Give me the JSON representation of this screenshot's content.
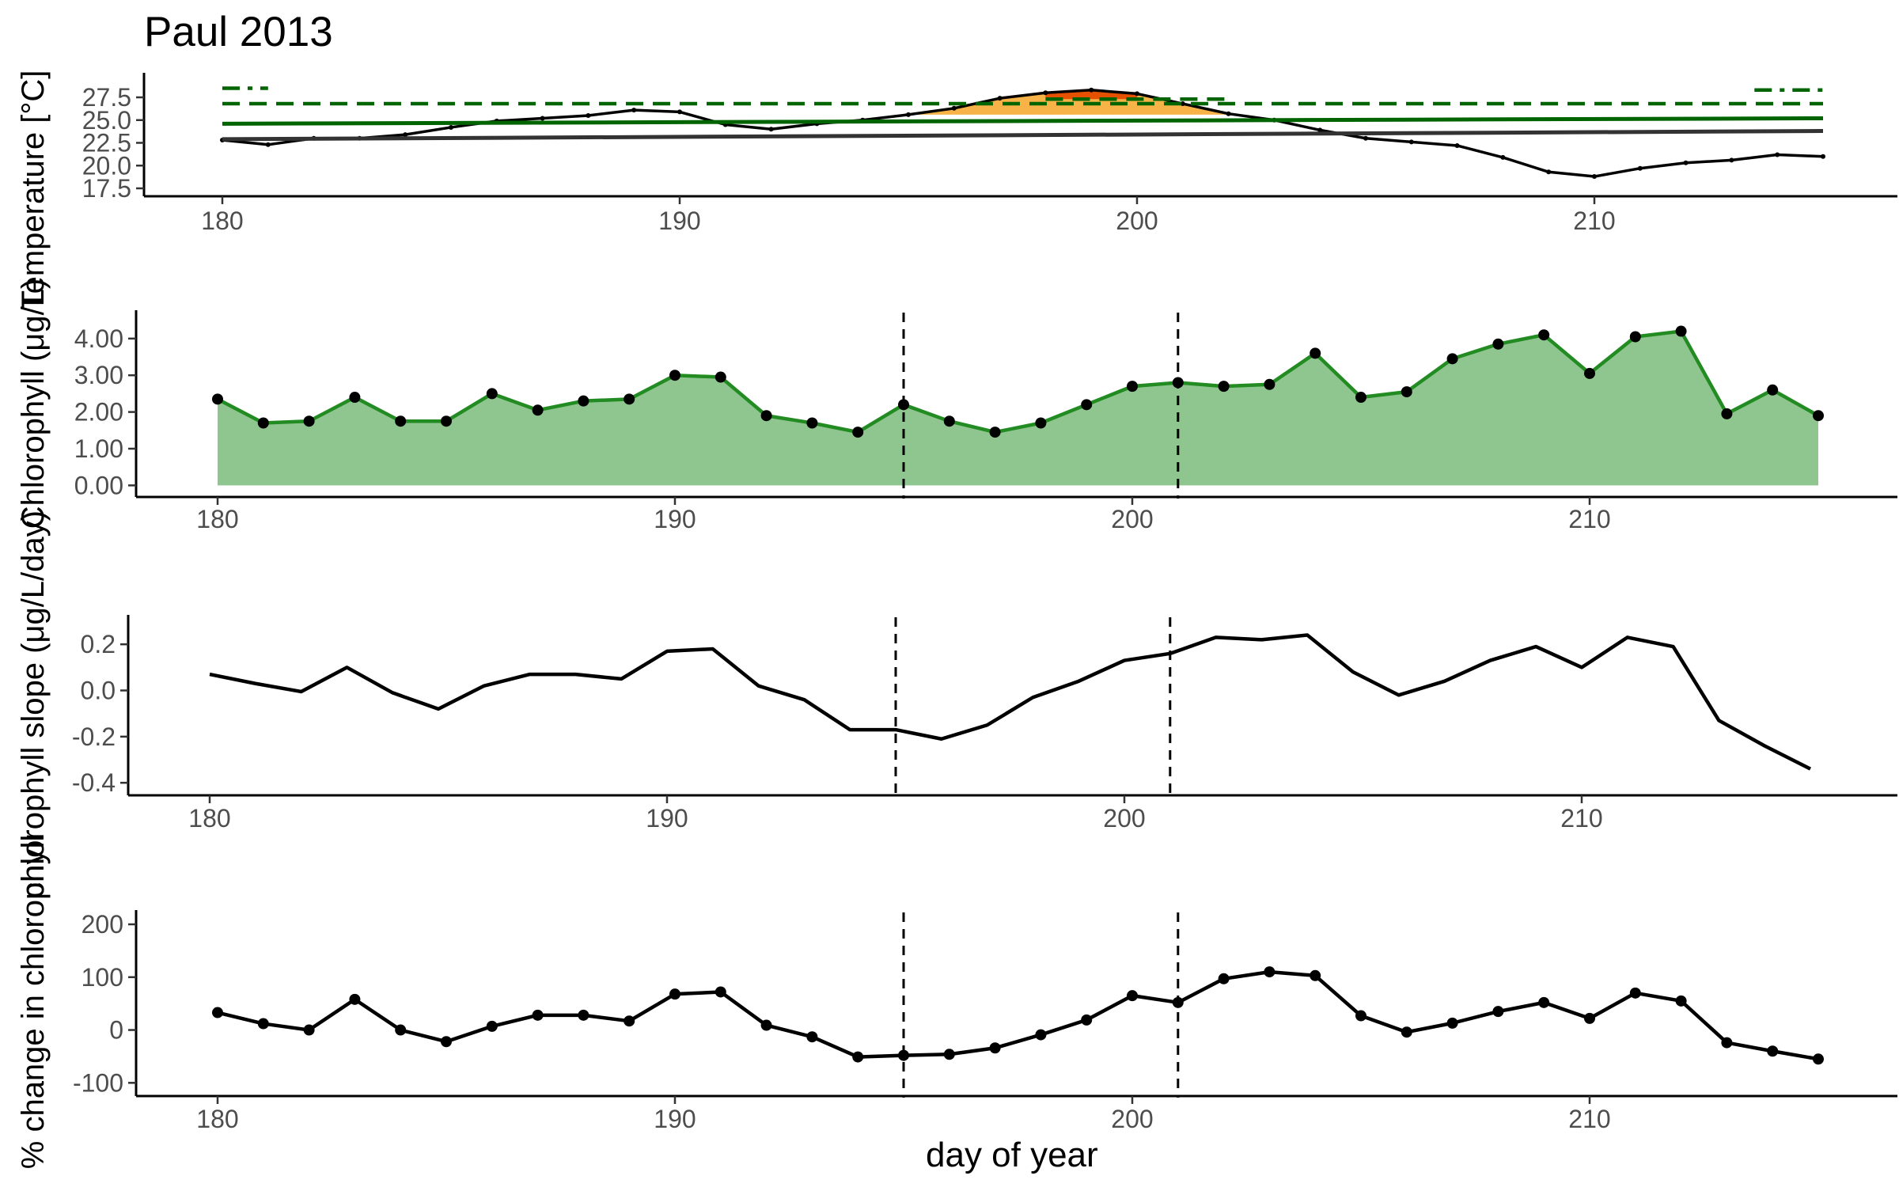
{
  "figure": {
    "title": "Paul 2013",
    "xlabel": "day of year"
  },
  "chart_data": [
    {
      "type": "line",
      "title": "Paul 2013",
      "ylabel": "Temperature [°C]",
      "xlabel": "",
      "xlim": [
        178.3,
        217
      ],
      "ylim": [
        17.5,
        29.5
      ],
      "xticks": [
        180,
        190,
        200,
        210
      ],
      "yticks": [
        17.5,
        20.0,
        22.5,
        25.0,
        27.5
      ],
      "ytick_labels": [
        "17.5",
        "20.0",
        "22.5",
        "25.0",
        "27.5"
      ],
      "grid": false,
      "x": [
        180,
        181,
        182,
        183,
        184,
        185,
        186,
        187,
        188,
        189,
        190,
        191,
        192,
        193,
        194,
        195,
        196,
        197,
        198,
        199,
        200,
        201,
        202,
        203,
        204,
        205,
        206,
        207,
        208,
        209,
        210,
        211,
        212,
        213,
        214,
        215
      ],
      "series": [
        {
          "color": "#000000",
          "style": "solid-with-small-points",
          "values": [
            22.8,
            22.3,
            23.0,
            23.0,
            23.4,
            24.2,
            24.9,
            25.2,
            25.5,
            26.1,
            25.9,
            24.5,
            24.0,
            24.6,
            25.0,
            25.6,
            26.3,
            27.4,
            28.0,
            28.3,
            27.9,
            26.8,
            25.7,
            25.0,
            23.9,
            23.0,
            22.6,
            22.2,
            20.9,
            19.3,
            18.8,
            19.7,
            20.3,
            20.6,
            21.2,
            21.0
          ]
        },
        {
          "color": "#333333",
          "style": "solid-thick",
          "x": [
            180,
            215
          ],
          "values": [
            22.9,
            23.8
          ]
        },
        {
          "color": "#006400",
          "style": "solid-thick",
          "x": [
            180,
            215
          ],
          "values": [
            24.6,
            25.2
          ]
        },
        {
          "color": "#006400",
          "style": "dashed",
          "x": [
            180,
            215
          ],
          "values": [
            26.8,
            26.8
          ]
        },
        {
          "color": "#006400",
          "style": "dashed",
          "x": [
            198,
            202
          ],
          "values": [
            27.3,
            27.3
          ]
        },
        {
          "color": "#006400",
          "style": "dash-dot",
          "x": [
            180,
            181
          ],
          "values": [
            28.5,
            28.5
          ]
        },
        {
          "color": "#006400",
          "style": "dash-dot",
          "x": [
            213.5,
            215
          ],
          "values": [
            28.3,
            28.3
          ]
        }
      ],
      "shaded_area": {
        "fill": "#f7b347",
        "inner_fill": "#e65100",
        "description_from": "temperature above upper threshold",
        "x": [
          195,
          196,
          197,
          198,
          199,
          200,
          201,
          202
        ],
        "upper": [
          25.6,
          26.3,
          27.4,
          28.0,
          28.3,
          27.9,
          26.8,
          25.7
        ],
        "lower": [
          25.6,
          25.6,
          25.6,
          25.6,
          25.6,
          25.6,
          25.6,
          25.6
        ]
      }
    },
    {
      "type": "area",
      "ylabel": "Chlorophyll (μg/L)",
      "xlabel": "",
      "xlim": [
        178.3,
        217
      ],
      "ylim": [
        -0.1,
        4.6
      ],
      "xticks": [
        180,
        190,
        200,
        210
      ],
      "yticks": [
        0,
        1,
        2,
        3,
        4
      ],
      "ytick_labels": [
        "0.00",
        "1.00",
        "2.00",
        "3.00",
        "4.00"
      ],
      "grid": false,
      "x": [
        180,
        181,
        182,
        183,
        184,
        185,
        186,
        187,
        188,
        189,
        190,
        191,
        192,
        193,
        194,
        195,
        196,
        197,
        198,
        199,
        200,
        201,
        202,
        203,
        204,
        205,
        206,
        207,
        208,
        209,
        210,
        211,
        212,
        213,
        214,
        215
      ],
      "series": [
        {
          "color": "#228b22",
          "fill": "#8fc68f",
          "marker": "point",
          "values": [
            2.35,
            1.7,
            1.75,
            2.4,
            1.75,
            1.75,
            2.5,
            2.05,
            2.3,
            2.35,
            3.0,
            2.95,
            1.9,
            1.7,
            1.45,
            2.2,
            1.75,
            1.45,
            1.7,
            2.2,
            2.7,
            2.8,
            2.7,
            2.75,
            3.6,
            2.4,
            2.55,
            3.45,
            3.85,
            4.1,
            3.05,
            4.05,
            4.2,
            1.95,
            2.6,
            1.9
          ]
        }
      ],
      "vlines": [
        195,
        201
      ]
    },
    {
      "type": "line",
      "ylabel": "chlorophyll slope (μg/L/day)",
      "xlabel": "",
      "xlim": [
        178.3,
        217
      ],
      "ylim": [
        -0.42,
        0.3
      ],
      "xticks": [
        180,
        190,
        200,
        210
      ],
      "yticks": [
        -0.4,
        -0.2,
        0.0,
        0.2
      ],
      "ytick_labels": [
        "-0.4",
        "-0.2",
        "0.0",
        "0.2"
      ],
      "grid": false,
      "x": [
        180,
        181,
        182,
        183,
        184,
        185,
        186,
        187,
        188,
        189,
        190,
        191,
        192,
        193,
        194,
        195,
        196,
        197,
        198,
        199,
        200,
        201,
        202,
        203,
        204,
        205,
        206,
        207,
        208,
        209,
        210,
        211,
        212,
        213,
        214,
        215
      ],
      "series": [
        {
          "color": "#000000",
          "values": [
            0.07,
            0.03,
            -0.005,
            0.1,
            -0.01,
            -0.08,
            0.02,
            0.07,
            0.07,
            0.05,
            0.17,
            0.18,
            0.02,
            -0.04,
            -0.17,
            -0.17,
            -0.21,
            -0.15,
            -0.03,
            0.04,
            0.13,
            0.16,
            0.23,
            0.22,
            0.24,
            0.08,
            -0.02,
            0.04,
            0.13,
            0.19,
            0.1,
            0.23,
            0.19,
            -0.13,
            -0.24,
            -0.34
          ]
        }
      ],
      "vlines": [
        195,
        201
      ]
    },
    {
      "type": "line",
      "ylabel": "% change in chlorophyll",
      "xlabel": "day of year",
      "xlim": [
        178.3,
        217
      ],
      "ylim": [
        -110,
        215
      ],
      "xticks": [
        180,
        190,
        200,
        210
      ],
      "yticks": [
        -100,
        0,
        100,
        200
      ],
      "ytick_labels": [
        "-100",
        "0",
        "100",
        "200"
      ],
      "grid": false,
      "x": [
        180,
        181,
        182,
        183,
        184,
        185,
        186,
        187,
        188,
        189,
        190,
        191,
        192,
        193,
        194,
        195,
        196,
        197,
        198,
        199,
        200,
        201,
        202,
        203,
        204,
        205,
        206,
        207,
        208,
        209,
        210,
        211,
        212,
        213,
        214,
        215
      ],
      "series": [
        {
          "color": "#000000",
          "marker": "point",
          "values": [
            33,
            12,
            0,
            58,
            0,
            -22,
            7,
            28,
            28,
            17,
            68,
            72,
            9,
            -13,
            -51,
            -48,
            -46,
            -34,
            -9,
            19,
            65,
            52,
            97,
            110,
            103,
            27,
            -4,
            13,
            35,
            52,
            22,
            70,
            55,
            -24,
            -40,
            -55
          ]
        }
      ],
      "vlines": [
        195,
        201
      ]
    }
  ]
}
